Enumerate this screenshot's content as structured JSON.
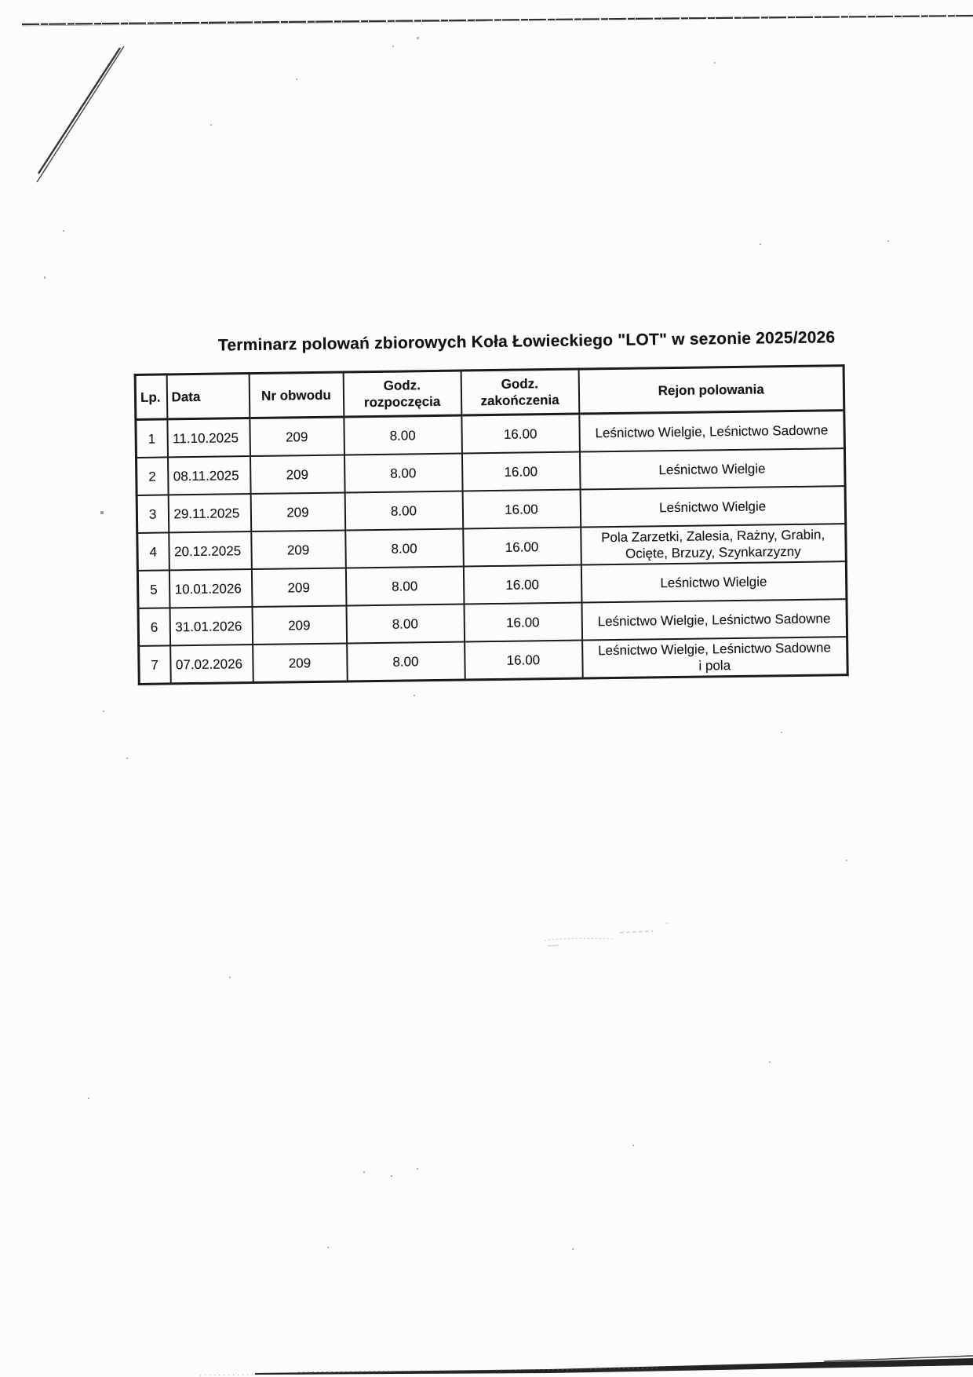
{
  "document": {
    "title": "Terminarz polowań zbiorowych Koła Łowieckiego \"LOT\" w sezonie 2025/2026"
  },
  "table": {
    "columns": [
      "Lp.",
      "Data",
      "Nr obwodu",
      "Godz. rozpoczęcia",
      "Godz. zakończenia",
      "Rejon polowania"
    ],
    "rows": [
      [
        "1",
        "11.10.2025",
        "209",
        "8.00",
        "16.00",
        "Leśnictwo Wielgie, Leśnictwo Sadowne"
      ],
      [
        "2",
        "08.11.2025",
        "209",
        "8.00",
        "16.00",
        "Leśnictwo Wielgie"
      ],
      [
        "3",
        "29.11.2025",
        "209",
        "8.00",
        "16.00",
        "Leśnictwo Wielgie"
      ],
      [
        "4",
        "20.12.2025",
        "209",
        "8.00",
        "16.00",
        "Pola Zarzetki, Zalesia, Rażny, Grabin,\nOcięte, Brzuzy, Szynkarzyzny"
      ],
      [
        "5",
        "10.01.2026",
        "209",
        "8.00",
        "16.00",
        "Leśnictwo Wielgie"
      ],
      [
        "6",
        "31.01.2026",
        "209",
        "8.00",
        "16.00",
        "Leśnictwo Wielgie, Leśnictwo Sadowne"
      ],
      [
        "7",
        "07.02.2026",
        "209",
        "8.00",
        "16.00",
        "Leśnictwo Wielgie, Leśnictwo Sadowne\ni pola"
      ]
    ]
  },
  "colors": {
    "paper": "#fcfcfb",
    "ink": "#161616",
    "table_border": "#1a1a1a"
  }
}
